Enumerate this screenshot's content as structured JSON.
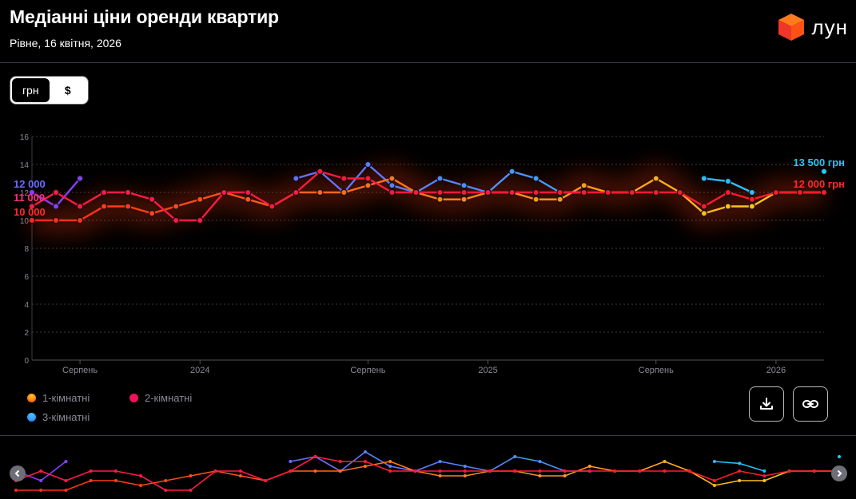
{
  "header": {
    "title": "Медіанні ціни оренди квартир",
    "subtitle": "Рівне, 16 квітня, 2026",
    "logo_text": "лун",
    "logo_icon": "cube-logo-icon"
  },
  "currency_toggle": {
    "options": [
      "грн",
      "$"
    ],
    "selected": "грн"
  },
  "legend": {
    "items": [
      {
        "label": "1-кімнатні",
        "color": "#f7a21b"
      },
      {
        "label": "2-кімнатні",
        "color": "#f0125a"
      },
      {
        "label": "3-кімнатні",
        "color": "#2a8cff"
      }
    ]
  },
  "buttons": {
    "download_icon": "download-icon",
    "share_icon": "link-icon"
  },
  "navigator": {
    "left_icon": "chevron-left-icon",
    "right_icon": "chevron-right-icon"
  },
  "chart_data": {
    "type": "line",
    "y_axis": {
      "range": [
        0,
        16
      ],
      "ticks": [
        0,
        2,
        4,
        6,
        8,
        10,
        12,
        14,
        16
      ],
      "unit_scale": 1000
    },
    "x_axis": {
      "range": [
        "2023-07-01",
        "2026-03-01"
      ],
      "tick_labels": [
        {
          "label": "Серпень",
          "date": "2023-08-01"
        },
        {
          "label": "2024",
          "date": "2024-01-01"
        },
        {
          "label": "Серпень",
          "date": "2024-08-01"
        },
        {
          "label": "2025",
          "date": "2025-01-01"
        },
        {
          "label": "Серпень",
          "date": "2025-08-01"
        },
        {
          "label": "2026",
          "date": "2026-01-01"
        }
      ]
    },
    "grid": true,
    "legend_position": "bottom-left",
    "left_labels": [
      {
        "text": "12 000",
        "value": 12000,
        "color": "#6b6bff"
      },
      {
        "text": "11 000",
        "value": 11000,
        "color": "#ff2e7a"
      },
      {
        "text": "10 000",
        "value": 10000,
        "color": "#ff2a2a"
      }
    ],
    "right_labels": [
      {
        "text": "13 500 грн",
        "value": 13500,
        "color": "#2bc4f2"
      },
      {
        "text": "12 000 грн",
        "value": 12000,
        "color": "#ff2a2a"
      }
    ],
    "series": [
      {
        "name": "1-кімнатні",
        "color_start": "#ff2a1a",
        "color_end": "#ffd21c",
        "points": [
          [
            "2023-06-01",
            10000
          ],
          [
            "2023-07-01",
            10000
          ],
          [
            "2023-08-01",
            10000
          ],
          [
            "2023-09-01",
            11000
          ],
          [
            "2023-10-01",
            11000
          ],
          [
            "2023-11-01",
            10500
          ],
          [
            "2023-12-01",
            11000
          ],
          [
            "2024-01-01",
            11500
          ],
          [
            "2024-02-01",
            12000
          ],
          [
            "2024-03-01",
            11500
          ],
          [
            "2024-04-01",
            11000
          ],
          [
            "2024-05-01",
            12000
          ],
          [
            "2024-06-01",
            12000
          ],
          [
            "2024-07-01",
            12000
          ],
          [
            "2024-08-01",
            12500
          ],
          [
            "2024-09-01",
            13000
          ],
          [
            "2024-10-01",
            12000
          ],
          [
            "2024-11-01",
            11500
          ],
          [
            "2024-12-01",
            11500
          ],
          [
            "2025-01-01",
            12000
          ],
          [
            "2025-02-01",
            12000
          ],
          [
            "2025-03-01",
            11500
          ],
          [
            "2025-04-01",
            11500
          ],
          [
            "2025-05-01",
            12500
          ],
          [
            "2025-06-01",
            12000
          ],
          [
            "2025-07-01",
            12000
          ],
          [
            "2025-08-01",
            13000
          ],
          [
            "2025-09-01",
            12000
          ],
          [
            "2025-10-01",
            10500
          ],
          [
            "2025-11-01",
            11000
          ],
          [
            "2025-12-01",
            11000
          ],
          [
            "2026-01-01",
            12000
          ],
          [
            "2026-02-01",
            12000
          ],
          [
            "2026-03-01",
            12000
          ]
        ]
      },
      {
        "name": "2-кімнатні",
        "color_start": "#ff1a4a",
        "color_end": "#ff1a2a",
        "points": [
          [
            "2023-06-01",
            11000
          ],
          [
            "2023-07-01",
            12000
          ],
          [
            "2023-08-01",
            11000
          ],
          [
            "2023-09-01",
            12000
          ],
          [
            "2023-10-01",
            12000
          ],
          [
            "2023-11-01",
            11500
          ],
          [
            "2023-12-01",
            10000
          ],
          [
            "2024-01-01",
            10000
          ],
          [
            "2024-02-01",
            12000
          ],
          [
            "2024-03-01",
            12000
          ],
          [
            "2024-04-01",
            11000
          ],
          [
            "2024-05-01",
            12000
          ],
          [
            "2024-06-01",
            13500
          ],
          [
            "2024-07-01",
            13000
          ],
          [
            "2024-08-01",
            13000
          ],
          [
            "2024-09-01",
            12000
          ],
          [
            "2024-10-01",
            12000
          ],
          [
            "2024-11-01",
            12000
          ],
          [
            "2024-12-01",
            12000
          ],
          [
            "2025-01-01",
            12000
          ],
          [
            "2025-02-01",
            12000
          ],
          [
            "2025-03-01",
            12000
          ],
          [
            "2025-04-01",
            12000
          ],
          [
            "2025-05-01",
            12000
          ],
          [
            "2025-06-01",
            12000
          ],
          [
            "2025-07-01",
            12000
          ],
          [
            "2025-08-01",
            12000
          ],
          [
            "2025-09-01",
            12000
          ],
          [
            "2025-10-01",
            11000
          ],
          [
            "2025-11-01",
            12000
          ],
          [
            "2025-12-01",
            11500
          ],
          [
            "2026-01-01",
            12000
          ],
          [
            "2026-02-01",
            12000
          ],
          [
            "2026-03-01",
            12000
          ]
        ]
      },
      {
        "name": "3-кімнатні",
        "color_start": "#8a3bff",
        "color_end": "#1ed0f5",
        "points": [
          [
            "2023-06-01",
            12000
          ],
          [
            "2023-07-01",
            11000
          ],
          [
            "2023-08-01",
            13000
          ],
          null,
          null,
          null,
          null,
          null,
          null,
          null,
          null,
          [
            "2024-05-01",
            13000
          ],
          [
            "2024-06-01",
            13500
          ],
          [
            "2024-07-01",
            12000
          ],
          [
            "2024-08-01",
            14000
          ],
          [
            "2024-09-01",
            12500
          ],
          [
            "2024-10-01",
            12000
          ],
          [
            "2024-11-01",
            13000
          ],
          [
            "2024-12-01",
            12500
          ],
          [
            "2025-01-01",
            12000
          ],
          [
            "2025-02-01",
            13500
          ],
          [
            "2025-03-01",
            13000
          ],
          [
            "2025-04-01",
            12000
          ],
          [
            "2025-05-01",
            12000
          ],
          null,
          null,
          null,
          null,
          [
            "2025-10-01",
            13000
          ],
          [
            "2025-11-01",
            12800
          ],
          [
            "2025-12-01",
            12000
          ],
          null,
          null,
          [
            "2026-03-01",
            13500
          ]
        ]
      }
    ]
  }
}
